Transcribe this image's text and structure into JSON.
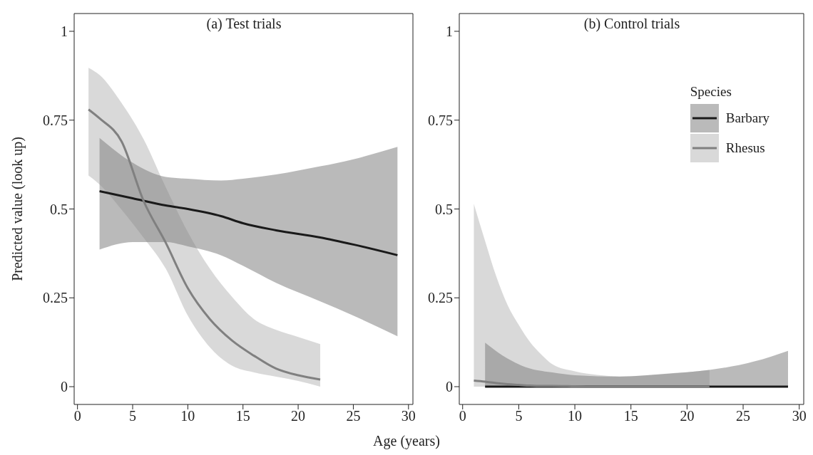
{
  "chart_data": [
    {
      "type": "line",
      "title": "(a) Test trials",
      "xlabel": "Age (years)",
      "ylabel": "Predicted value (look up)",
      "xlim": [
        -0.3,
        30.4
      ],
      "ylim": [
        -0.05,
        1.05
      ],
      "xticks": [
        0,
        5,
        10,
        15,
        20,
        25,
        30
      ],
      "yticks": [
        0,
        0.25,
        0.5,
        0.75,
        1
      ],
      "legend": false,
      "series": [
        {
          "color": "#1a1a1a",
          "x": [
            2,
            5,
            8,
            10,
            13,
            15,
            18,
            22,
            25,
            29
          ],
          "values": [
            0.55,
            0.53,
            0.51,
            0.5,
            0.48,
            0.46,
            0.44,
            0.42,
            0.4,
            0.37
          ],
          "upper": [
            0.7,
            0.63,
            0.59,
            0.585,
            0.58,
            0.585,
            0.597,
            0.62,
            0.64,
            0.675
          ],
          "lower": [
            0.386,
            0.407,
            0.407,
            0.395,
            0.37,
            0.34,
            0.292,
            0.24,
            0.2,
            0.142
          ]
        },
        {
          "color": "#808080",
          "x": [
            1,
            2,
            4,
            6,
            8,
            10,
            12,
            14,
            16,
            18,
            20,
            22
          ],
          "values": [
            0.78,
            0.755,
            0.69,
            0.522,
            0.405,
            0.277,
            0.19,
            0.13,
            0.087,
            0.051,
            0.032,
            0.02
          ],
          "upper": [
            0.897,
            0.877,
            0.798,
            0.696,
            0.561,
            0.435,
            0.332,
            0.253,
            0.19,
            0.16,
            0.14,
            0.12
          ],
          "lower": [
            0.594,
            0.569,
            0.498,
            0.419,
            0.332,
            0.2,
            0.111,
            0.059,
            0.04,
            0.028,
            0.016,
            0
          ]
        }
      ]
    },
    {
      "type": "line",
      "title": "(b) Control trials",
      "legend_title": "Species",
      "xlim": [
        -0.3,
        30.4
      ],
      "ylim": [
        -0.05,
        1.05
      ],
      "xticks": [
        0,
        5,
        10,
        15,
        20,
        25,
        30
      ],
      "yticks": [
        0,
        0.25,
        0.5,
        0.75,
        1
      ],
      "legend": "top right",
      "series": [
        {
          "name": "Barbary",
          "color": "#1a1a1a",
          "x": [
            2,
            4,
            6,
            8,
            10,
            14,
            18,
            22,
            26,
            29
          ],
          "values": [
            0,
            0,
            0,
            0,
            0,
            0,
            0,
            0,
            0,
            0
          ],
          "upper": [
            0.124,
            0.079,
            0.051,
            0.04,
            0.032,
            0.028,
            0.036,
            0.047,
            0.071,
            0.101
          ],
          "lower": [
            0,
            0,
            0,
            0,
            0,
            0,
            0,
            0,
            0,
            0
          ]
        },
        {
          "name": "Rhesus",
          "color": "#808080",
          "x": [
            1,
            2,
            3,
            4,
            5,
            6,
            7,
            8,
            10,
            12,
            14,
            18,
            22
          ],
          "values": [
            0.017,
            0.014,
            0.01,
            0.007,
            0.005,
            0.003,
            0.002,
            0.002,
            0.001,
            0,
            0,
            0,
            0
          ],
          "upper": [
            0.514,
            0.41,
            0.31,
            0.23,
            0.174,
            0.126,
            0.091,
            0.063,
            0.043,
            0.033,
            0.029,
            0.035,
            0.047
          ],
          "lower": [
            0,
            0,
            0,
            0,
            0,
            0,
            0,
            0,
            0,
            0,
            0,
            0,
            0
          ]
        }
      ]
    }
  ]
}
